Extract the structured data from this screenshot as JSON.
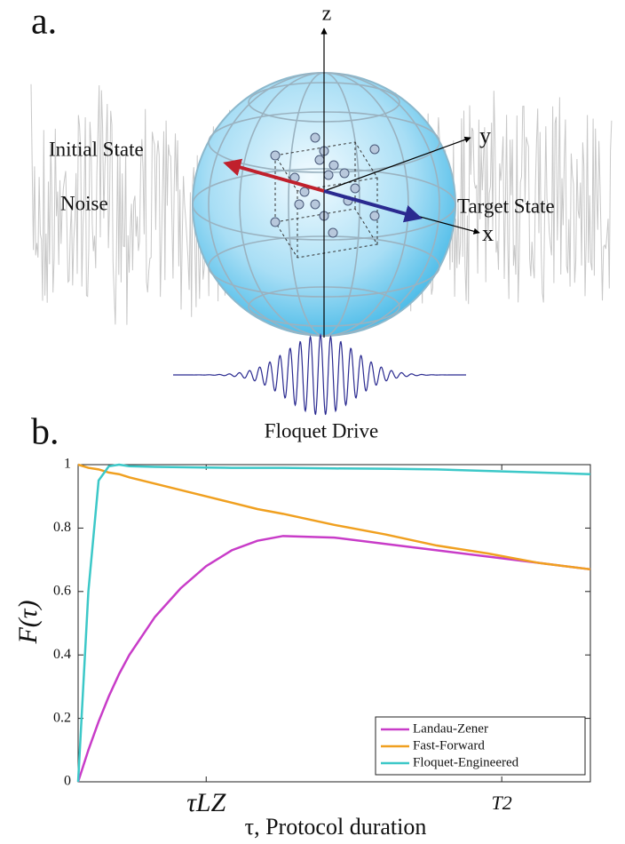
{
  "panel_a": {
    "label": "a.",
    "axis_z": "z",
    "axis_y": "y",
    "axis_x": "x",
    "initial_state": "Initial State",
    "target_state": "Target State",
    "noise": "Noise",
    "drive": "Floquet Drive"
  },
  "chart_data": {
    "type": "line",
    "panel_label": "b.",
    "ylabel": "F(τ)",
    "xlabel": "τ, Protocol duration",
    "x": [
      0,
      0.02,
      0.04,
      0.06,
      0.08,
      0.1,
      0.15,
      0.2,
      0.25,
      0.3,
      0.35,
      0.4,
      0.5,
      0.6,
      0.7,
      0.8,
      0.9,
      1.0
    ],
    "series": [
      {
        "name": "Landau-Zener",
        "color": "#c83cc8",
        "values": [
          0,
          0.1,
          0.19,
          0.27,
          0.34,
          0.4,
          0.52,
          0.61,
          0.68,
          0.73,
          0.76,
          0.775,
          0.77,
          0.75,
          0.73,
          0.71,
          0.69,
          0.67
        ]
      },
      {
        "name": "Fast-Forward",
        "color": "#f0a020",
        "values": [
          1,
          0.99,
          0.985,
          0.975,
          0.97,
          0.96,
          0.94,
          0.92,
          0.9,
          0.88,
          0.86,
          0.845,
          0.81,
          0.78,
          0.745,
          0.72,
          0.69,
          0.67
        ]
      },
      {
        "name": "Floquet-Engineered",
        "color": "#3cc8c8",
        "values": [
          0,
          0.6,
          0.95,
          0.995,
          1,
          0.995,
          0.993,
          0.992,
          0.991,
          0.99,
          0.99,
          0.99,
          0.988,
          0.987,
          0.985,
          0.98,
          0.975,
          0.97
        ]
      }
    ],
    "xlim": [
      0,
      1
    ],
    "ylim": [
      0,
      1
    ],
    "xticks": [
      {
        "value": 0.25,
        "label": "τLZ"
      },
      {
        "value": 0.827,
        "label": "T2"
      }
    ],
    "yticks": [
      0,
      0.2,
      0.4,
      0.6,
      0.8,
      1
    ],
    "legend": "lower right"
  }
}
